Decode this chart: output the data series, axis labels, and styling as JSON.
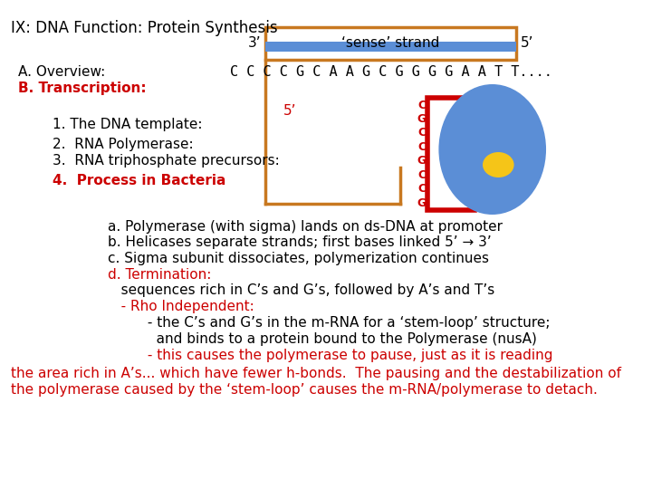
{
  "title": "IX: DNA Function: Protein Synthesis",
  "title_color": "#000000",
  "title_fontsize": 12,
  "sense_strand_label": "‘sense’ strand",
  "sense_strand_seq": "C C C C G C A A G C G G G G A A T T....",
  "strand_3prime": "3’",
  "strand_5prime": "5’",
  "strand_5prime_lower": "5’",
  "dna_box_color": "#c87820",
  "dna_strand_color": "#5b8ed6",
  "dna_seq_color": "#000000",
  "red_rect_color": "#cc0000",
  "circle_color": "#5b8ed6",
  "yellow_ellipse_color": "#f5c518",
  "rna_letters_color": "#cc0000",
  "background": "#ffffff",
  "left_labels": [
    {
      "text": "A. Overview:",
      "color": "#000000",
      "fontsize": 11,
      "bold": false,
      "indent": 1
    },
    {
      "text": "B. Transcription:",
      "color": "#cc0000",
      "fontsize": 11,
      "bold": true,
      "indent": 1
    },
    {
      "text": "1. The DNA template:",
      "color": "#000000",
      "fontsize": 11,
      "bold": false,
      "indent": 3
    },
    {
      "text": "2.  RNA Polymerase:",
      "color": "#000000",
      "fontsize": 11,
      "bold": false,
      "indent": 3
    },
    {
      "text": "3.  RNA triphosphate precursors:",
      "color": "#000000",
      "fontsize": 11,
      "bold": false,
      "indent": 3
    },
    {
      "text": "4.  Process in Bacteria",
      "color": "#cc0000",
      "fontsize": 11,
      "bold": true,
      "indent": 3
    }
  ],
  "body_lines": [
    {
      "text": "a. Polymerase (with sigma) lands on ds-DNA at promoter",
      "color": "#000000",
      "indent": 5
    },
    {
      "text": "b. Helicases separate strands; first bases linked 5’ → 3’",
      "color": "#000000",
      "indent": 5
    },
    {
      "text": "c. Sigma subunit dissociates, polymerization continues",
      "color": "#000000",
      "indent": 5
    },
    {
      "text": "d. Termination:",
      "color": "#cc0000",
      "indent": 5
    },
    {
      "text": "   sequences rich in C’s and G’s, followed by A’s and T’s",
      "color": "#000000",
      "indent": 5
    },
    {
      "text": "   - Rho Independent:",
      "color": "#cc0000",
      "indent": 5
    },
    {
      "text": "         - the C’s and G’s in the m-RNA for a ‘stem-loop’ structure;",
      "color": "#000000",
      "indent": 5
    },
    {
      "text": "           and binds to a protein bound to the Polymerase (nusA)",
      "color": "#000000",
      "indent": 5
    },
    {
      "text": "         - this causes the polymerase to pause, just as it is reading",
      "color": "#cc0000",
      "indent": 5
    },
    {
      "text": "the area rich in A’s... which have fewer h-bonds.  The pausing and the destabilization of",
      "color": "#cc0000",
      "indent": 0
    },
    {
      "text": "the polymerase caused by the ‘stem-loop’ causes the m-RNA/polymerase to detach.",
      "color": "#cc0000",
      "indent": 0
    }
  ],
  "rna_letters": [
    "C",
    "G",
    "C",
    "C",
    "G",
    "C",
    "C",
    "G"
  ]
}
